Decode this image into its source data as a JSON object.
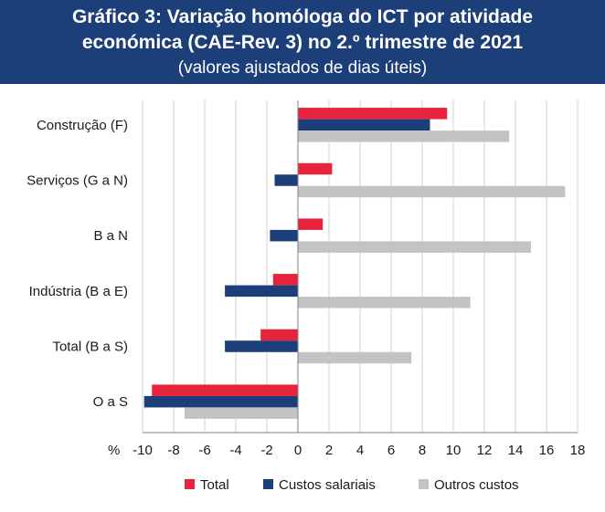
{
  "header": {
    "title_line1": "Gráfico 3: Variação homóloga do ICT por atividade",
    "title_line2": "económica (CAE-Rev. 3) no 2.º trimestre de 2021",
    "subtitle": "(valores ajustados de dias úteis)"
  },
  "chart_data": {
    "type": "bar",
    "orientation": "horizontal",
    "title": "Gráfico 3: Variação homóloga do ICT por atividade económica (CAE-Rev. 3) no 2.º trimestre de 2021",
    "subtitle": "(valores ajustados de dias úteis)",
    "x_unit_label": "%",
    "xlim": [
      -10,
      18
    ],
    "xticks": [
      -10,
      -8,
      -6,
      -4,
      -2,
      0,
      2,
      4,
      6,
      8,
      10,
      12,
      14,
      16,
      18
    ],
    "categories": [
      "Construção (F)",
      "Serviços (G a N)",
      "B a N",
      "Indústria (B a E)",
      "Total (B a S)",
      "O a S"
    ],
    "series": [
      {
        "name": "Total",
        "color": "#e8243c",
        "values": [
          9.6,
          2.2,
          1.6,
          -1.6,
          -2.4,
          -9.4
        ]
      },
      {
        "name": "Custos salariais",
        "color": "#1c3f7a",
        "values": [
          8.5,
          -1.5,
          -1.8,
          -4.7,
          -4.7,
          -9.9
        ]
      },
      {
        "name": "Outros custos",
        "color": "#c3c3c3",
        "values": [
          13.6,
          17.2,
          15.0,
          11.1,
          7.3,
          -7.3
        ]
      }
    ],
    "grid": true,
    "legend_position": "bottom"
  }
}
